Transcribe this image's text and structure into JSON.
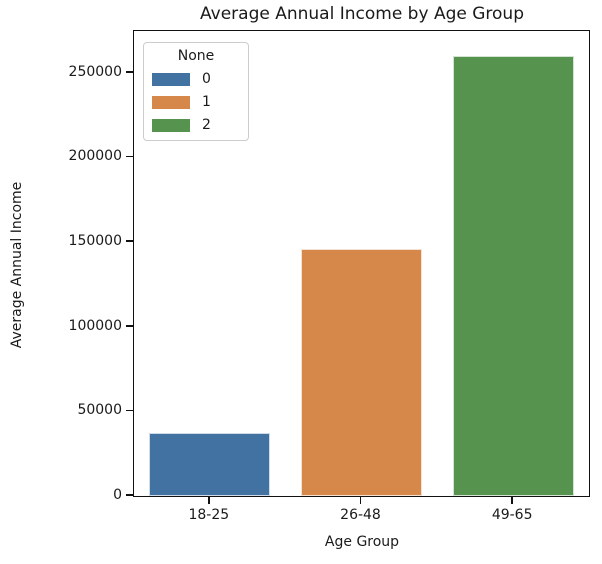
{
  "title": "Average Annual Income by Age Group",
  "chart_data": {
    "type": "bar",
    "title": "Average Annual Income by Age Group",
    "xlabel": "Age Group",
    "ylabel": "Average Annual Income",
    "categories": [
      "18-25",
      "26-48",
      "49-65"
    ],
    "values": [
      37000,
      146000,
      260000
    ],
    "bar_colors": [
      "#4272a2",
      "#d6884a",
      "#55934e"
    ],
    "ylim": [
      0,
      274700
    ],
    "yticks": [
      0,
      50000,
      100000,
      150000,
      200000,
      250000
    ],
    "grid": false,
    "legend": {
      "title": "None",
      "position": "upper left",
      "entries": [
        {
          "label": "0",
          "color": "#4272a2"
        },
        {
          "label": "1",
          "color": "#d6884a"
        },
        {
          "label": "2",
          "color": "#55934e"
        }
      ]
    }
  }
}
